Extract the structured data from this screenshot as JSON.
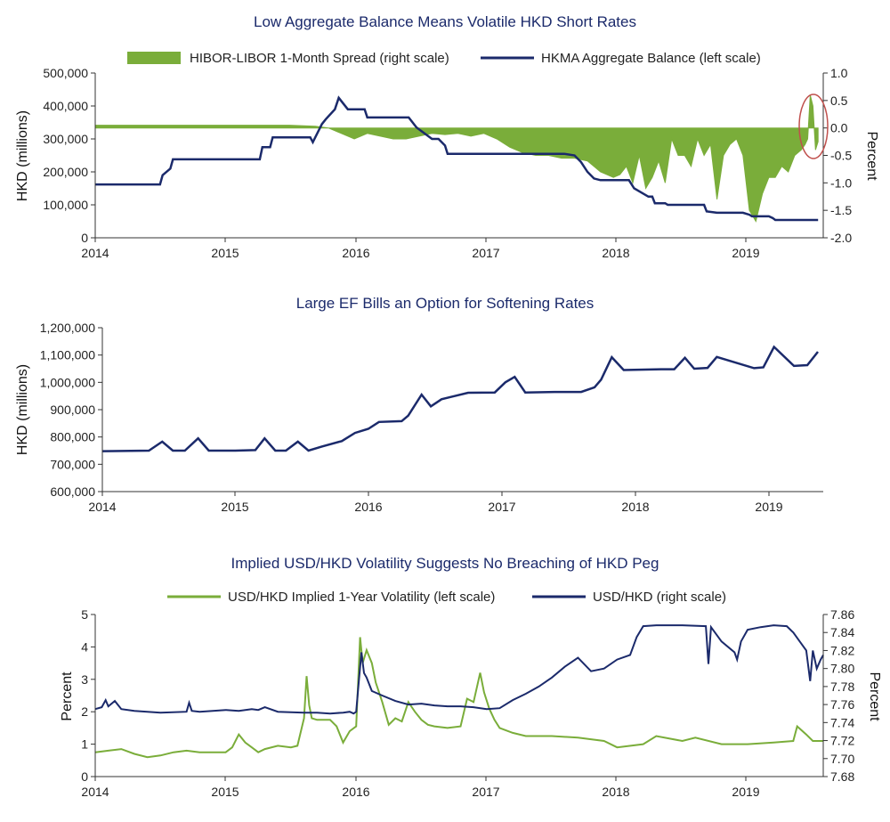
{
  "colors": {
    "navy": "#1b2a6b",
    "green": "#7aad3a",
    "highlight": "#c0504d"
  },
  "chart_data": [
    {
      "type": "line",
      "title": "Low Aggregate Balance Means Volatile HKD Short Rates",
      "legend": [
        "HIBOR-LIBOR 1-Month Spread (right scale)",
        "HKMA Aggregate Balance (left scale)"
      ],
      "legend_placement": "top",
      "ylabel": "HKD (millions)",
      "y2label": "Percent",
      "ylim": [
        0,
        500000
      ],
      "y2lim": [
        -2.0,
        1.0
      ],
      "yticks": [
        "500,000",
        "400,000",
        "300,000",
        "200,000",
        "100,000",
        "0"
      ],
      "y2ticks": [
        "1.0",
        "0.5",
        "0.0",
        "-0.5",
        "-1.0",
        "-1.5",
        "-2.0"
      ],
      "xticks": [
        "2014",
        "2015",
        "2016",
        "2017",
        "2018",
        "2019"
      ],
      "series": [
        {
          "name": "HKMA Aggregate Balance (left scale)",
          "kind": "line",
          "x": [
            2014.0,
            2014.5,
            2014.52,
            2014.58,
            2014.6,
            2015.27,
            2015.29,
            2015.35,
            2015.37,
            2015.66,
            2015.68,
            2015.75,
            2015.78,
            2015.85,
            2015.88,
            2015.95,
            2016.08,
            2016.1,
            2016.42,
            2016.48,
            2016.6,
            2016.65,
            2016.7,
            2016.72,
            2016.98,
            2017.02,
            2017.62,
            2017.7,
            2017.75,
            2017.8,
            2017.85,
            2017.9,
            2018.12,
            2018.16,
            2018.27,
            2018.3,
            2018.32,
            2018.4,
            2018.42,
            2018.7,
            2018.72,
            2018.8,
            2018.81,
            2019.0,
            2019.05,
            2019.07,
            2019.2,
            2019.23,
            2019.25,
            2019.58
          ],
          "y": [
            162000,
            162000,
            190000,
            210000,
            238000,
            238000,
            275000,
            275000,
            305000,
            305000,
            290000,
            345000,
            360000,
            390000,
            425000,
            390000,
            390000,
            365000,
            365000,
            335000,
            300000,
            300000,
            280000,
            255000,
            255000,
            255000,
            255000,
            250000,
            230000,
            200000,
            180000,
            175000,
            175000,
            150000,
            125000,
            125000,
            105000,
            105000,
            100000,
            100000,
            80000,
            76000,
            76000,
            76000,
            70000,
            65000,
            65000,
            60000,
            54000,
            54000
          ]
        },
        {
          "name": "HIBOR-LIBOR 1-Month Spread (right scale)",
          "kind": "area",
          "x": [
            2014.0,
            2014.5,
            2015.0,
            2015.5,
            2015.7,
            2015.8,
            2015.9,
            2016.0,
            2016.05,
            2016.1,
            2016.2,
            2016.3,
            2016.4,
            2016.5,
            2016.6,
            2016.7,
            2016.8,
            2016.9,
            2017.0,
            2017.1,
            2017.2,
            2017.3,
            2017.4,
            2017.5,
            2017.6,
            2017.7,
            2017.8,
            2017.9,
            2018.0,
            2018.05,
            2018.1,
            2018.15,
            2018.2,
            2018.25,
            2018.3,
            2018.35,
            2018.4,
            2018.45,
            2018.5,
            2018.55,
            2018.6,
            2018.65,
            2018.7,
            2018.75,
            2018.8,
            2018.85,
            2018.9,
            2018.95,
            2019.0,
            2019.05,
            2019.1,
            2019.15,
            2019.2,
            2019.25,
            2019.3,
            2019.35,
            2019.4,
            2019.45,
            2019.48,
            2019.5,
            2019.52,
            2019.54,
            2019.56,
            2019.58
          ],
          "y": [
            0.05,
            0.05,
            0.05,
            0.05,
            0.03,
            0.0,
            -0.1,
            -0.2,
            -0.15,
            -0.1,
            -0.15,
            -0.2,
            -0.2,
            -0.15,
            -0.1,
            -0.12,
            -0.1,
            -0.15,
            -0.1,
            -0.2,
            -0.35,
            -0.45,
            -0.5,
            -0.5,
            -0.55,
            -0.55,
            -0.6,
            -0.8,
            -0.9,
            -0.85,
            -0.7,
            -1.0,
            -0.5,
            -1.1,
            -0.9,
            -0.6,
            -1.0,
            -0.2,
            -0.5,
            -0.5,
            -0.7,
            -0.2,
            -0.5,
            -0.3,
            -1.3,
            -0.5,
            -0.3,
            -0.2,
            -0.5,
            -1.5,
            -1.7,
            -1.2,
            -0.9,
            -0.9,
            -0.7,
            -0.8,
            -0.5,
            -0.4,
            -0.3,
            -0.2,
            0.6,
            0.4,
            -0.4,
            -0.25
          ]
        }
      ]
    },
    {
      "type": "line",
      "title": "Large EF Bills an Option for Softening Rates",
      "ylabel": "HKD (millions)",
      "ylim": [
        600000,
        1200000
      ],
      "yticks": [
        "1,200,000",
        "1,100,000",
        "1,000,000",
        "900,000",
        "800,000",
        "700,000",
        "600,000"
      ],
      "xticks": [
        "2014",
        "2015",
        "2016",
        "2017",
        "2018",
        "2019"
      ],
      "series": [
        {
          "name": "",
          "x": [
            2014.0,
            2014.35,
            2014.45,
            2014.53,
            2014.62,
            2014.72,
            2014.8,
            2015.0,
            2015.15,
            2015.22,
            2015.3,
            2015.38,
            2015.47,
            2015.55,
            2015.65,
            2015.8,
            2015.9,
            2016.0,
            2016.08,
            2016.25,
            2016.3,
            2016.4,
            2016.47,
            2016.55,
            2016.75,
            2016.95,
            2017.03,
            2017.1,
            2017.18,
            2017.4,
            2017.6,
            2017.7,
            2017.75,
            2017.83,
            2017.92,
            2018.2,
            2018.3,
            2018.38,
            2018.45,
            2018.55,
            2018.62,
            2018.9,
            2018.97,
            2019.05,
            2019.2,
            2019.3,
            2019.38
          ],
          "y": [
            748000,
            750000,
            783000,
            750000,
            750000,
            795000,
            750000,
            750000,
            752000,
            795000,
            750000,
            750000,
            783000,
            750000,
            765000,
            785000,
            815000,
            830000,
            855000,
            858000,
            878000,
            955000,
            912000,
            938000,
            962000,
            963000,
            1000000,
            1020000,
            963000,
            965000,
            965000,
            982000,
            1010000,
            1092000,
            1045000,
            1048000,
            1048000,
            1090000,
            1050000,
            1053000,
            1093000,
            1052000,
            1055000,
            1130000,
            1060000,
            1063000,
            1112000
          ]
        }
      ]
    },
    {
      "type": "line",
      "title": "Implied USD/HKD Volatility Suggests No Breaching of HKD Peg",
      "legend": [
        "USD/HKD Implied 1-Year Volatility (left scale)",
        "USD/HKD (right scale)"
      ],
      "legend_placement": "top",
      "ylabel": "Percent",
      "y2label": "Percent",
      "ylim": [
        0,
        5
      ],
      "y2lim": [
        7.68,
        7.86
      ],
      "yticks": [
        "5",
        "4",
        "3",
        "2",
        "1",
        "0"
      ],
      "y2ticks": [
        "7.86",
        "7.84",
        "7.82",
        "7.80",
        "7.78",
        "7.76",
        "7.74",
        "7.72",
        "7.70",
        "7.68"
      ],
      "xticks": [
        "2014",
        "2015",
        "2016",
        "2017",
        "2018",
        "2019"
      ],
      "series": [
        {
          "name": "USD/HKD Implied 1-Year Volatility (left scale)",
          "axis": "left",
          "x": [
            2014.0,
            2014.1,
            2014.2,
            2014.3,
            2014.4,
            2014.5,
            2014.6,
            2014.7,
            2014.8,
            2014.9,
            2015.0,
            2015.05,
            2015.1,
            2015.15,
            2015.2,
            2015.25,
            2015.3,
            2015.4,
            2015.5,
            2015.55,
            2015.6,
            2015.62,
            2015.64,
            2015.66,
            2015.7,
            2015.8,
            2015.85,
            2015.9,
            2015.95,
            2016.0,
            2016.03,
            2016.05,
            2016.08,
            2016.12,
            2016.15,
            2016.2,
            2016.25,
            2016.3,
            2016.35,
            2016.4,
            2016.45,
            2016.5,
            2016.55,
            2016.6,
            2016.7,
            2016.8,
            2016.85,
            2016.9,
            2016.95,
            2016.98,
            2017.02,
            2017.06,
            2017.1,
            2017.2,
            2017.3,
            2017.5,
            2017.7,
            2017.9,
            2018.0,
            2018.2,
            2018.3,
            2018.5,
            2018.6,
            2018.8,
            2019.0,
            2019.2,
            2019.35,
            2019.38,
            2019.45,
            2019.5,
            2019.58
          ],
          "y": [
            0.75,
            0.8,
            0.85,
            0.7,
            0.6,
            0.65,
            0.75,
            0.8,
            0.75,
            0.75,
            0.75,
            0.9,
            1.3,
            1.05,
            0.9,
            0.75,
            0.85,
            0.95,
            0.9,
            0.95,
            1.8,
            3.1,
            2.2,
            1.8,
            1.75,
            1.75,
            1.55,
            1.05,
            1.4,
            1.55,
            4.3,
            3.5,
            3.9,
            3.5,
            2.9,
            2.3,
            1.6,
            1.8,
            1.7,
            2.3,
            2.0,
            1.75,
            1.6,
            1.55,
            1.5,
            1.55,
            2.4,
            2.3,
            3.2,
            2.6,
            2.1,
            1.75,
            1.5,
            1.35,
            1.25,
            1.25,
            1.2,
            1.1,
            0.9,
            1.0,
            1.25,
            1.1,
            1.2,
            1.0,
            1.0,
            1.05,
            1.1,
            1.55,
            1.3,
            1.1,
            1.1
          ]
        },
        {
          "name": "USD/HKD (right scale)",
          "axis": "right",
          "x": [
            2014.0,
            2014.05,
            2014.08,
            2014.1,
            2014.15,
            2014.2,
            2014.3,
            2014.5,
            2014.7,
            2014.72,
            2014.74,
            2014.8,
            2015.0,
            2015.1,
            2015.2,
            2015.25,
            2015.3,
            2015.4,
            2015.6,
            2015.7,
            2015.8,
            2015.9,
            2015.95,
            2015.98,
            2016.0,
            2016.02,
            2016.04,
            2016.06,
            2016.08,
            2016.12,
            2016.2,
            2016.3,
            2016.4,
            2016.5,
            2016.6,
            2016.7,
            2016.8,
            2016.9,
            2017.0,
            2017.1,
            2017.2,
            2017.3,
            2017.4,
            2017.5,
            2017.6,
            2017.7,
            2017.8,
            2017.9,
            2018.0,
            2018.1,
            2018.15,
            2018.2,
            2018.3,
            2018.5,
            2018.68,
            2018.7,
            2018.72,
            2018.8,
            2018.9,
            2018.92,
            2018.95,
            2019.0,
            2019.1,
            2019.2,
            2019.3,
            2019.35,
            2019.4,
            2019.45,
            2019.48,
            2019.5,
            2019.53,
            2019.56,
            2019.58
          ],
          "y": [
            7.755,
            7.757,
            7.765,
            7.758,
            7.764,
            7.755,
            7.753,
            7.751,
            7.752,
            7.762,
            7.753,
            7.752,
            7.754,
            7.753,
            7.755,
            7.754,
            7.757,
            7.752,
            7.751,
            7.751,
            7.75,
            7.751,
            7.752,
            7.75,
            7.752,
            7.785,
            7.818,
            7.795,
            7.79,
            7.775,
            7.77,
            7.764,
            7.76,
            7.761,
            7.759,
            7.758,
            7.758,
            7.757,
            7.755,
            7.756,
            7.765,
            7.772,
            7.78,
            7.79,
            7.802,
            7.812,
            7.797,
            7.8,
            7.81,
            7.815,
            7.835,
            7.847,
            7.848,
            7.848,
            7.847,
            7.805,
            7.846,
            7.83,
            7.818,
            7.81,
            7.83,
            7.843,
            7.846,
            7.848,
            7.847,
            7.84,
            7.83,
            7.82,
            7.786,
            7.82,
            7.8,
            7.81,
            7.815
          ]
        }
      ]
    }
  ]
}
